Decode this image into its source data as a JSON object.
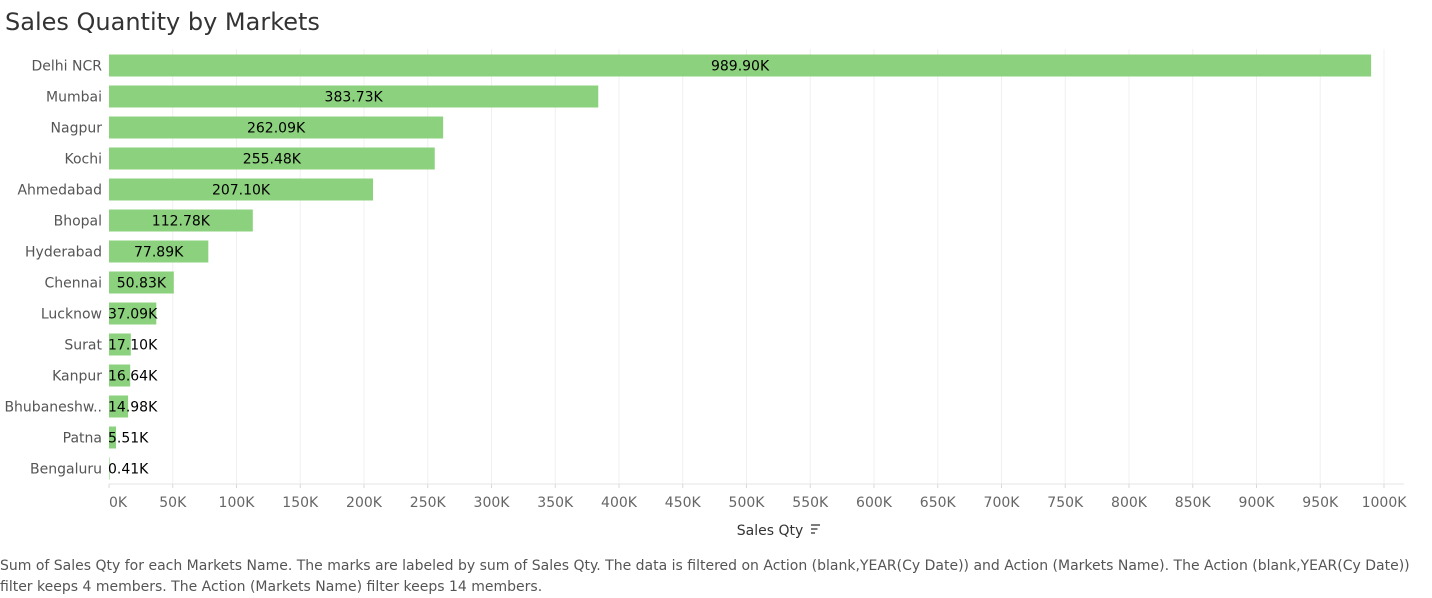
{
  "chart_data": {
    "type": "bar",
    "orientation": "horizontal",
    "title": "Sales Quantity by Markets",
    "xlabel": "Sales Qty",
    "ylabel": "",
    "categories": [
      "Delhi NCR",
      "Mumbai",
      "Nagpur",
      "Kochi",
      "Ahmedabad",
      "Bhopal",
      "Hyderabad",
      "Chennai",
      "Lucknow",
      "Surat",
      "Kanpur",
      "Bhubaneshw..",
      "Patna",
      "Bengaluru"
    ],
    "values": [
      989900,
      383730,
      262090,
      255480,
      207100,
      112780,
      77890,
      50830,
      37090,
      17100,
      16640,
      14980,
      5510,
      410
    ],
    "data_labels": [
      "989.90K",
      "383.73K",
      "262.09K",
      "255.48K",
      "207.10K",
      "112.78K",
      "77.89K",
      "50.83K",
      "37.09K",
      "17.10K",
      "16.64K",
      "14.98K",
      "5.51K",
      "0.41K"
    ],
    "xlim": [
      0,
      1000000
    ],
    "xticks": [
      0,
      50000,
      100000,
      150000,
      200000,
      250000,
      300000,
      350000,
      400000,
      450000,
      500000,
      550000,
      600000,
      650000,
      700000,
      750000,
      800000,
      850000,
      900000,
      950000,
      1000000
    ],
    "xtick_labels": [
      "0K",
      "50K",
      "100K",
      "150K",
      "200K",
      "250K",
      "300K",
      "350K",
      "400K",
      "450K",
      "500K",
      "550K",
      "600K",
      "650K",
      "700K",
      "750K",
      "800K",
      "850K",
      "900K",
      "950K",
      "1000K"
    ],
    "grid": true,
    "sorted": "descending",
    "bar_color": "#8cd17d",
    "gridline_color": "#f0f0f0",
    "sort_icon": "sort-descending-icon"
  },
  "caption": "Sum of Sales Qty for each Markets Name.  The marks are labeled by sum of Sales Qty. The data is filtered on Action (blank,YEAR(Cy Date)) and Action (Markets Name). The Action (blank,YEAR(Cy Date)) filter keeps 4 members. The Action (Markets Name) filter keeps 14 members."
}
